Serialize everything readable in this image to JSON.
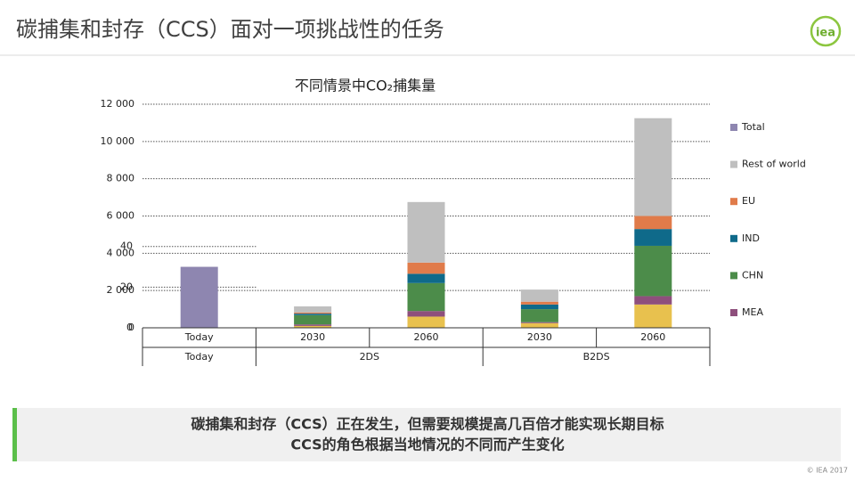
{
  "header": {
    "title": "碳捕集和封存（CCS）面对一项挑战性的任务",
    "logo": "iea"
  },
  "chart_data": {
    "type": "stacked-bar",
    "title": "不同情景中CO₂捕集量",
    "categories": [
      "Today",
      "2030",
      "2060",
      "2030",
      "2060"
    ],
    "groups": [
      {
        "label": "Today",
        "count": 1
      },
      {
        "label": "2DS",
        "count": 2
      },
      {
        "label": "B2DS",
        "count": 2
      }
    ],
    "series": [
      {
        "name": null,
        "color": "#e8c14e",
        "values": [
          null,
          100,
          600,
          250,
          1250
        ]
      },
      {
        "name": "MEA",
        "color": "#8e4f7c",
        "values": [
          null,
          80,
          300,
          50,
          450
        ]
      },
      {
        "name": "CHN",
        "color": "#4c8c4a",
        "values": [
          null,
          500,
          1500,
          700,
          2700
        ]
      },
      {
        "name": "IND",
        "color": "#0f6a8a",
        "values": [
          null,
          80,
          500,
          250,
          900
        ]
      },
      {
        "name": "EU",
        "color": "#e07b4a",
        "values": [
          null,
          60,
          600,
          150,
          700
        ]
      },
      {
        "name": "Rest of world",
        "color": "#bfbfbf",
        "values": [
          null,
          330,
          3250,
          650,
          5250
        ]
      },
      {
        "name": "Total",
        "color": "#8e86b0",
        "axis": "y2",
        "values": [
          30,
          null,
          null,
          null,
          null
        ]
      }
    ],
    "ylim": [
      0,
      12000
    ],
    "yticks": [
      0,
      {
        "value": 2000,
        "label": "2 000"
      },
      {
        "value": 4000,
        "label": "4 000"
      },
      {
        "value": 6000,
        "label": "6 000"
      },
      {
        "value": 8000,
        "label": "8 000"
      },
      {
        "value": 10000,
        "label": "10 000"
      },
      {
        "value": 12000,
        "label": "12 000"
      }
    ],
    "y2lim": [
      0,
      110
    ],
    "y2ticks": [
      0,
      20,
      40
    ],
    "grid": true
  },
  "footer": {
    "lines": [
      "碳捕集和封存（CCS）正在发生，但需要规模提高几百倍才能实现长期目标",
      "CCS的角色根据当地情况的不同而产生变化"
    ],
    "copyright": "© IEA 2017"
  }
}
